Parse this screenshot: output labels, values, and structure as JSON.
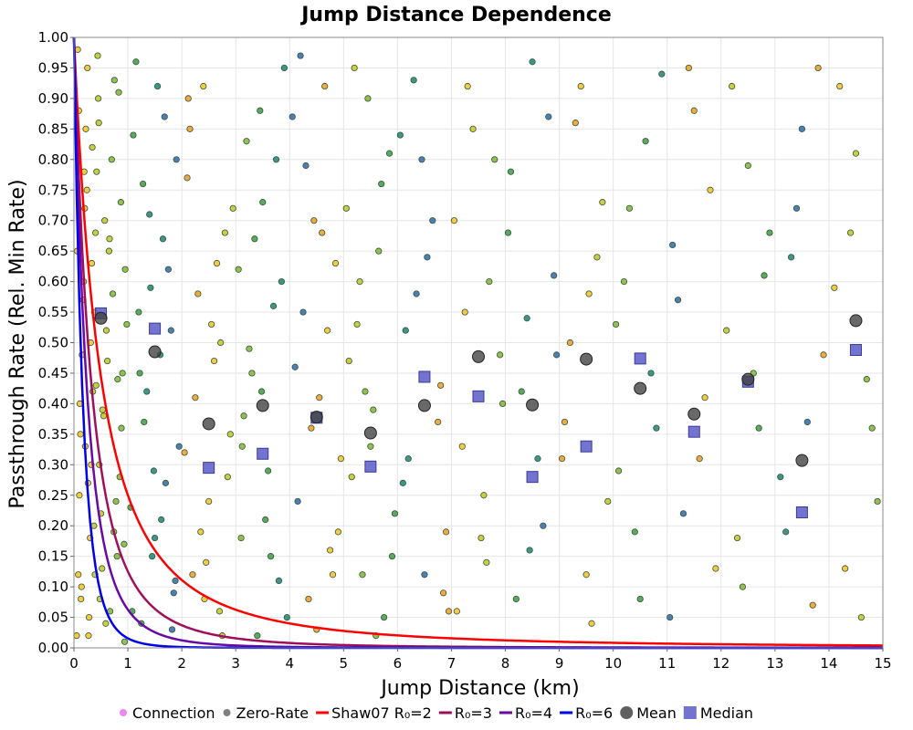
{
  "chart_data": {
    "type": "scatter",
    "title": "Jump Distance Dependence",
    "xlabel": "Jump Distance (km)",
    "ylabel": "Passthrough Rate (Rel. Min Rate)",
    "xlim": [
      0,
      15
    ],
    "ylim": [
      0,
      1
    ],
    "x_ticks": [
      "0",
      "1",
      "2",
      "3",
      "4",
      "5",
      "6",
      "7",
      "8",
      "9",
      "10",
      "11",
      "12",
      "13",
      "14",
      "15"
    ],
    "y_ticks": [
      "0.00",
      "0.05",
      "0.10",
      "0.15",
      "0.20",
      "0.25",
      "0.30",
      "0.35",
      "0.40",
      "0.45",
      "0.50",
      "0.55",
      "0.60",
      "0.65",
      "0.70",
      "0.75",
      "0.80",
      "0.85",
      "0.90",
      "0.95",
      "1.00"
    ],
    "grid": true,
    "colors": {
      "connection": "#ee88ee",
      "zero_rate": "#808080",
      "shaw07": "#ff0000",
      "r0_3": "#a0105a",
      "r0_4": "#6a0aa6",
      "r0_6": "#0000ee",
      "mean": "#444444",
      "median": "#5a5ac8",
      "points": [
        "#f4c430",
        "#c8c830",
        "#88b840",
        "#48a050",
        "#2a8a80",
        "#3a70b0",
        "#f0a030"
      ]
    },
    "legend": {
      "placement": "bottom",
      "items": [
        {
          "label": "Connection",
          "marker": "dot",
          "color_key": "connection"
        },
        {
          "label": "Zero-Rate",
          "marker": "dot",
          "color_key": "zero_rate"
        },
        {
          "label": "Shaw07 R₀=2",
          "marker": "line",
          "color_key": "shaw07"
        },
        {
          "label": "R₀=3",
          "marker": "line",
          "color_key": "r0_3"
        },
        {
          "label": "R₀=4",
          "marker": "line",
          "color_key": "r0_4"
        },
        {
          "label": "R₀=6",
          "marker": "line",
          "color_key": "r0_6"
        },
        {
          "label": "Mean",
          "marker": "circle",
          "color_key": "mean"
        },
        {
          "label": "Median",
          "marker": "square",
          "color_key": "median"
        }
      ]
    },
    "curves": [
      {
        "name": "Shaw07 R₀=2",
        "color_key": "shaw07",
        "form": "(1+d)^-R0",
        "R0": 2
      },
      {
        "name": "R₀=3",
        "color_key": "r0_3",
        "form": "(1+d)^-R0",
        "R0": 3
      },
      {
        "name": "R₀=4",
        "color_key": "r0_4",
        "form": "(1+d)^-R0",
        "R0": 4
      },
      {
        "name": "R₀=6",
        "color_key": "r0_6",
        "form": "(1+d)^-R0",
        "R0": 6
      }
    ],
    "mean": {
      "x": [
        0.5,
        1.5,
        2.5,
        3.5,
        4.5,
        5.5,
        6.5,
        7.5,
        8.5,
        9.5,
        10.5,
        11.5,
        12.5,
        13.5,
        14.5
      ],
      "y": [
        0.54,
        0.485,
        0.367,
        0.397,
        0.378,
        0.352,
        0.397,
        0.477,
        0.398,
        0.473,
        0.425,
        0.383,
        0.44,
        0.307,
        0.536
      ]
    },
    "median": {
      "x": [
        0.5,
        1.5,
        2.5,
        3.5,
        4.5,
        5.5,
        6.5,
        7.5,
        8.5,
        9.5,
        10.5,
        11.5,
        12.5,
        13.5,
        14.5
      ],
      "y": [
        0.548,
        0.523,
        0.295,
        0.318,
        0.377,
        0.297,
        0.444,
        0.412,
        0.28,
        0.33,
        0.474,
        0.354,
        0.436,
        0.222,
        0.488
      ]
    },
    "scatter_points": {
      "x": [
        0.05,
        0.08,
        0.1,
        0.12,
        0.15,
        0.18,
        0.2,
        0.22,
        0.25,
        0.28,
        0.3,
        0.32,
        0.35,
        0.38,
        0.4,
        0.42,
        0.45,
        0.48,
        0.5,
        0.55,
        0.6,
        0.65,
        0.7,
        0.75,
        0.8,
        0.85,
        0.9,
        0.95,
        0.06,
        0.09,
        0.11,
        0.14,
        0.17,
        0.21,
        0.24,
        0.27,
        0.31,
        0.34,
        0.37,
        0.41,
        0.44,
        0.47,
        0.52,
        0.57,
        0.62,
        0.67,
        0.72,
        0.78,
        0.83,
        0.88,
        0.93,
        0.98,
        0.07,
        0.13,
        0.19,
        0.26,
        0.33,
        0.39,
        0.46,
        0.53,
        0.59,
        0.66,
        0.74,
        0.81,
        0.87,
        0.94,
        1.05,
        1.1,
        1.2,
        1.25,
        1.3,
        1.4,
        1.45,
        1.55,
        1.6,
        1.7,
        1.75,
        1.85,
        1.9,
        1.95,
        1.15,
        1.35,
        1.5,
        1.65,
        1.8,
        1.08,
        1.28,
        1.48,
        1.68,
        1.88,
        1.22,
        1.42,
        1.62,
        1.82,
        2.05,
        2.1,
        2.2,
        2.3,
        2.4,
        2.5,
        2.6,
        2.7,
        2.8,
        2.9,
        2.15,
        2.35,
        2.55,
        2.75,
        2.95,
        2.25,
        2.45,
        2.65,
        2.85,
        2.12,
        2.42,
        2.72,
        3.05,
        3.1,
        3.2,
        3.3,
        3.4,
        3.5,
        3.6,
        3.7,
        3.8,
        3.9,
        3.15,
        3.35,
        3.55,
        3.75,
        3.95,
        3.25,
        3.45,
        3.65,
        3.85,
        3.12,
        3.48,
        4.05,
        4.15,
        4.25,
        4.35,
        4.45,
        4.55,
        4.65,
        4.75,
        4.85,
        4.95,
        4.1,
        4.3,
        4.5,
        4.7,
        4.9,
        4.2,
        4.4,
        4.6,
        4.8,
        5.05,
        5.15,
        5.25,
        5.35,
        5.45,
        5.55,
        5.65,
        5.75,
        5.85,
        5.95,
        5.1,
        5.3,
        5.5,
        5.7,
        5.9,
        5.2,
        5.4,
        5.6,
        6.05,
        6.2,
        6.35,
        6.5,
        6.65,
        6.8,
        6.95,
        6.1,
        6.3,
        6.55,
        6.75,
        6.9,
        6.15,
        6.45,
        6.85,
        7.05,
        7.2,
        7.4,
        7.55,
        7.7,
        7.9,
        7.1,
        7.3,
        7.6,
        7.8,
        7.95,
        7.25,
        7.65,
        8.1,
        8.3,
        8.5,
        8.7,
        8.9,
        8.2,
        8.4,
        8.6,
        8.8,
        8.05,
        8.45,
        8.95,
        9.1,
        9.3,
        9.5,
        9.7,
        9.9,
        9.2,
        9.4,
        9.6,
        9.8,
        9.05,
        9.55,
        10.1,
        10.3,
        10.5,
        10.7,
        10.9,
        10.2,
        10.4,
        10.6,
        10.8,
        10.05,
        11.1,
        11.3,
        11.5,
        11.7,
        11.9,
        11.2,
        11.4,
        11.6,
        11.8,
        11.05,
        12.1,
        12.3,
        12.5,
        12.7,
        12.9,
        12.2,
        12.4,
        12.6,
        12.8,
        13.1,
        13.3,
        13.5,
        13.7,
        13.9,
        13.2,
        13.4,
        13.6,
        13.8,
        14.1,
        14.3,
        14.5,
        14.7,
        14.9,
        14.2,
        14.4,
        14.6,
        14.8
      ],
      "y": [
        0.02,
        0.12,
        0.25,
        0.35,
        0.48,
        0.6,
        0.72,
        0.85,
        0.95,
        0.05,
        0.18,
        0.3,
        0.42,
        0.55,
        0.68,
        0.78,
        0.9,
        0.08,
        0.22,
        0.38,
        0.52,
        0.65,
        0.8,
        0.93,
        0.15,
        0.28,
        0.45,
        0.62,
        0.65,
        0.88,
        0.4,
        0.1,
        0.57,
        0.33,
        0.75,
        0.02,
        0.5,
        0.82,
        0.2,
        0.43,
        0.97,
        0.3,
        0.13,
        0.7,
        0.47,
        0.06,
        0.58,
        0.24,
        0.91,
        0.36,
        0.17,
        0.53,
        0.98,
        0.08,
        0.78,
        0.27,
        0.63,
        0.12,
        0.86,
        0.39,
        0.04,
        0.67,
        0.19,
        0.44,
        0.73,
        0.01,
        0.23,
        0.84,
        0.55,
        0.04,
        0.37,
        0.71,
        0.15,
        0.92,
        0.48,
        0.27,
        0.62,
        0.09,
        0.8,
        0.33,
        0.96,
        0.42,
        0.18,
        0.67,
        0.52,
        0.06,
        0.76,
        0.29,
        0.87,
        0.11,
        0.45,
        0.59,
        0.21,
        0.03,
        0.32,
        0.77,
        0.12,
        0.58,
        0.92,
        0.24,
        0.47,
        0.06,
        0.68,
        0.35,
        0.85,
        0.19,
        0.53,
        0.02,
        0.72,
        0.41,
        0.14,
        0.63,
        0.28,
        0.9,
        0.08,
        0.5,
        0.62,
        0.18,
        0.83,
        0.45,
        0.02,
        0.73,
        0.29,
        0.56,
        0.11,
        0.95,
        0.38,
        0.67,
        0.21,
        0.8,
        0.05,
        0.49,
        0.88,
        0.15,
        0.6,
        0.33,
        0.42,
        0.87,
        0.24,
        0.55,
        0.08,
        0.7,
        0.41,
        0.92,
        0.16,
        0.63,
        0.31,
        0.46,
        0.79,
        0.03,
        0.52,
        0.19,
        0.97,
        0.36,
        0.68,
        0.12,
        0.72,
        0.28,
        0.53,
        0.12,
        0.9,
        0.39,
        0.65,
        0.05,
        0.81,
        0.22,
        0.47,
        0.6,
        0.33,
        0.76,
        0.15,
        0.95,
        0.42,
        0.02,
        0.84,
        0.31,
        0.58,
        0.12,
        0.7,
        0.43,
        0.06,
        0.27,
        0.93,
        0.64,
        0.37,
        0.19,
        0.52,
        0.8,
        0.09,
        0.7,
        0.33,
        0.85,
        0.18,
        0.6,
        0.48,
        0.06,
        0.92,
        0.25,
        0.8,
        0.4,
        0.55,
        0.14,
        0.78,
        0.42,
        0.96,
        0.2,
        0.61,
        0.08,
        0.54,
        0.31,
        0.87,
        0.68,
        0.16,
        0.48,
        0.37,
        0.86,
        0.12,
        0.64,
        0.24,
        0.5,
        0.92,
        0.04,
        0.73,
        0.31,
        0.58,
        0.29,
        0.72,
        0.08,
        0.45,
        0.94,
        0.6,
        0.19,
        0.83,
        0.36,
        0.53,
        0.66,
        0.22,
        0.88,
        0.41,
        0.13,
        0.57,
        0.95,
        0.31,
        0.75,
        0.05,
        0.52,
        0.18,
        0.79,
        0.36,
        0.68,
        0.92,
        0.1,
        0.45,
        0.61,
        0.28,
        0.64,
        0.85,
        0.07,
        0.48,
        0.19,
        0.72,
        0.37,
        0.95,
        0.59,
        0.13,
        0.81,
        0.44,
        0.24,
        0.92,
        0.68,
        0.05,
        0.36
      ]
    }
  }
}
